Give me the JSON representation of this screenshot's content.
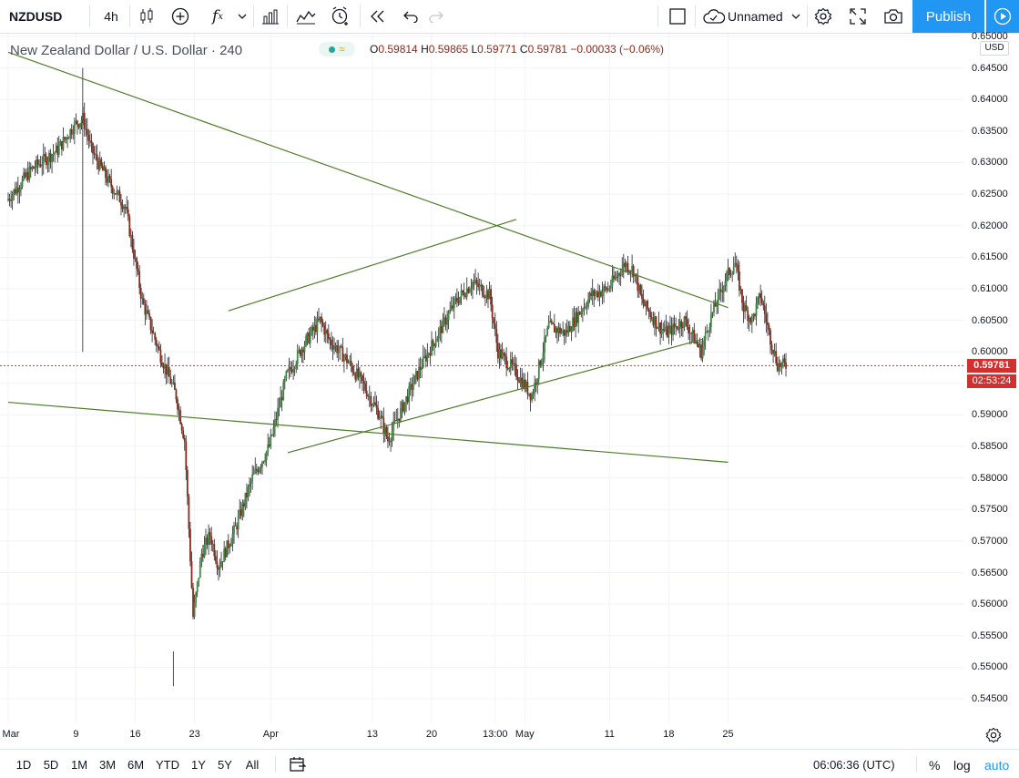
{
  "toolbar": {
    "symbol": "NZDUSD",
    "interval": "4h",
    "layout_name": "Unnamed",
    "publish_label": "Publish",
    "icons": [
      "candles-icon",
      "add-indicator-icon",
      "fx-icon",
      "chevron-down-icon",
      "bar-chart-icon",
      "compare-icon",
      "alert-icon",
      "replay-icon",
      "undo-icon",
      "redo-icon",
      "layout-icon",
      "cloud-icon",
      "settings-icon",
      "fullscreen-icon",
      "camera-icon",
      "play-icon"
    ]
  },
  "legend": {
    "title": "New Zealand Dollar / U.S. Dollar · 240",
    "open_label": "O",
    "open": "0.59814",
    "high_label": "H",
    "high": "0.59865",
    "low_label": "L",
    "low": "0.59771",
    "close_label": "C",
    "close": "0.59781",
    "change": "−0.00033 (−0.06%)"
  },
  "price_axis": {
    "currency": "USD",
    "ticks": [
      "0.65000",
      "0.64500",
      "0.64000",
      "0.63500",
      "0.63000",
      "0.62500",
      "0.62000",
      "0.61500",
      "0.61000",
      "0.60500",
      "0.60000",
      "0.59500",
      "0.59000",
      "0.58500",
      "0.58000",
      "0.57500",
      "0.57000",
      "0.56500",
      "0.56000",
      "0.55500",
      "0.55000",
      "0.54500"
    ],
    "last_price": "0.59781",
    "countdown": "02:53:24"
  },
  "time_axis": {
    "ticks": [
      "Mar",
      "9",
      "16",
      "23",
      "Apr",
      "13",
      "20",
      "13:00",
      "May",
      "11",
      "18",
      "25"
    ]
  },
  "bottom_bar": {
    "ranges": [
      "1D",
      "5D",
      "1M",
      "3M",
      "6M",
      "YTD",
      "1Y",
      "5Y",
      "All"
    ],
    "clock": "06:06:36 (UTC)",
    "percent_label": "%",
    "log_label": "log",
    "auto_label": "auto"
  },
  "colors": {
    "up": "#3c8a43",
    "down": "#8b2a1b",
    "trendline": "#4f7c2a",
    "price_line": "#d32f2f",
    "accent": "#2196f3"
  },
  "chart_data": {
    "type": "candlestick",
    "symbol": "NZDUSD",
    "timeframe": "4h",
    "last_price": 0.59781,
    "key_levels": {
      "high_early_march": 0.645,
      "low_march_19": 0.547,
      "high_late_april": 0.6175,
      "high_may_11": 0.6155
    },
    "trendlines": [
      {
        "name": "descending resistance",
        "from": [
          "Mar 1",
          0.6475
        ],
        "to": [
          "May 25",
          0.607
        ]
      },
      {
        "name": "rising wedge upper",
        "from": [
          "Mar 27",
          0.6065
        ],
        "to": [
          "Apr 30",
          0.621
        ]
      },
      {
        "name": "rising wedge lower",
        "from": [
          "Apr 3",
          0.584
        ],
        "to": [
          "May 22",
          0.602
        ]
      },
      {
        "name": "long-term support",
        "from": [
          "Mar 1",
          0.592
        ],
        "to": [
          "May 25",
          0.5825
        ]
      }
    ]
  }
}
